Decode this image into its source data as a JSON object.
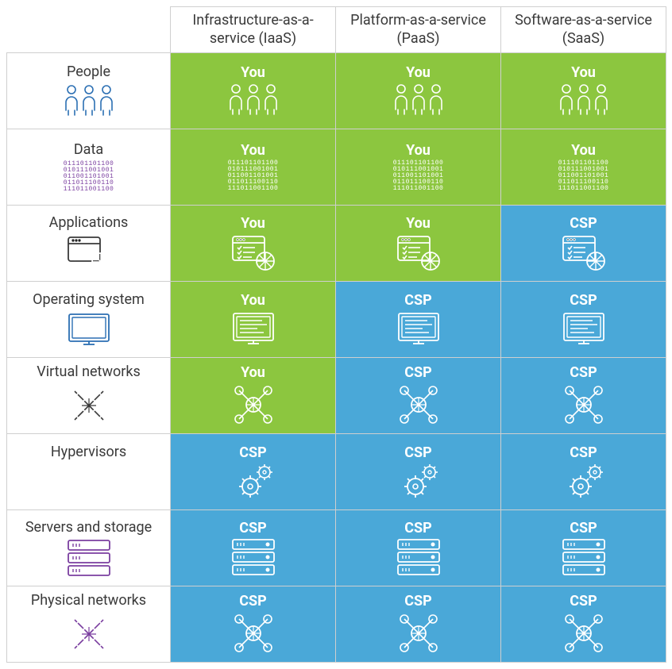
{
  "type": "table",
  "background_color": "#ffffff",
  "grid_color": "#cfcfcf",
  "header_text_color": "#3a3a3a",
  "row_label_text_color": "#3a3a3a",
  "cell_text_color": "#ffffff",
  "header_fontsize": 18,
  "cell_label_fontsize": 18,
  "cell_label_fontweight": 700,
  "columns": [
    {
      "key": "iaas",
      "label": "Infrastructure-as-a-service (IaaS)"
    },
    {
      "key": "paas",
      "label": "Platform-as-a-service (PaaS)"
    },
    {
      "key": "saas",
      "label": "Software-as-a-service (SaaS)"
    }
  ],
  "responsibilities": {
    "you": {
      "label": "You",
      "color": "#8cc63f"
    },
    "csp": {
      "label": "CSP",
      "color": "#4aa8d8"
    }
  },
  "row_icon_colors": {
    "people": "#2b6fb3",
    "data": "#7b3fa0",
    "applications_lines": "#7b3fa0",
    "applications_globe_stroke": "#3a3a3a",
    "applications_globe_fill": "#e98a3c",
    "os_frame": "#2b6fb3",
    "os_lines": "#e98a3c",
    "vnet_stroke": "#3a3a3a",
    "vnet_center_fill": "#e98a3c",
    "vnet_nodes": "#7b3fa0",
    "hypervisors_big": "#e98a3c",
    "hypervisors_small": "#7b3fa0",
    "servers_frame": "#7b3fa0",
    "servers_led": "#e98a3c",
    "physnet_stroke": "#7b3fa0",
    "physnet_center_fill": "#e98a3c",
    "physnet_nodes": "#2b6fb3"
  },
  "rows": [
    {
      "key": "people",
      "label": "People",
      "icon": "people",
      "cells": {
        "iaas": "you",
        "paas": "you",
        "saas": "you"
      }
    },
    {
      "key": "data",
      "label": "Data",
      "icon": "data",
      "cells": {
        "iaas": "you",
        "paas": "you",
        "saas": "you"
      }
    },
    {
      "key": "apps",
      "label": "Applications",
      "icon": "applications",
      "cells": {
        "iaas": "you",
        "paas": "you",
        "saas": "csp"
      }
    },
    {
      "key": "os",
      "label": "Operating system",
      "icon": "os",
      "cells": {
        "iaas": "you",
        "paas": "csp",
        "saas": "csp"
      }
    },
    {
      "key": "vnet",
      "label": "Virtual networks",
      "icon": "vnet",
      "cells": {
        "iaas": "you",
        "paas": "csp",
        "saas": "csp"
      }
    },
    {
      "key": "hyp",
      "label": "Hypervisors",
      "icon": "hypervisors",
      "cells": {
        "iaas": "csp",
        "paas": "csp",
        "saas": "csp"
      }
    },
    {
      "key": "servers",
      "label": "Servers and storage",
      "icon": "servers",
      "cells": {
        "iaas": "csp",
        "paas": "csp",
        "saas": "csp"
      }
    },
    {
      "key": "physnet",
      "label": "Physical networks",
      "icon": "physnet",
      "cells": {
        "iaas": "csp",
        "paas": "csp",
        "saas": "csp"
      }
    }
  ],
  "binary_lines": "011101101100\n010111001001\n011001101001\n011011100110\n111011001100"
}
